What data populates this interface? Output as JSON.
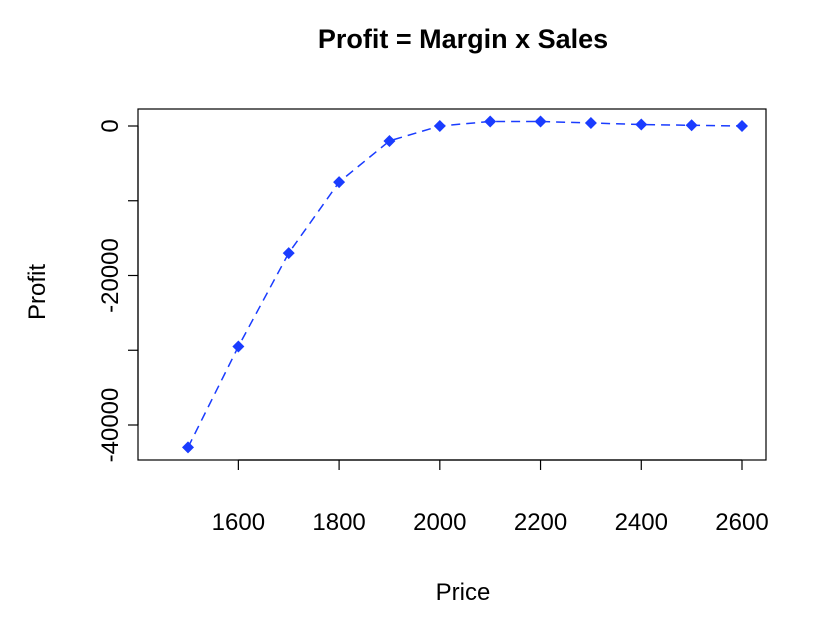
{
  "chart_data": {
    "type": "line",
    "title": "Profit = Margin x Sales",
    "xlabel": "Price",
    "ylabel": "Profit",
    "xlim": [
      1500,
      2600
    ],
    "ylim": [
      -44000,
      1000
    ],
    "x_ticks": [
      1600,
      1800,
      2000,
      2200,
      2400,
      2600
    ],
    "y_ticks": [
      -40000,
      -20000,
      0
    ],
    "x_tick_labels": [
      "1600",
      "1800",
      "2000",
      "2200",
      "2400",
      "2600"
    ],
    "y_tick_labels": [
      "-40000",
      "-20000",
      "0"
    ],
    "grid": false,
    "legend": "none",
    "series": [
      {
        "color": "#1a3cff",
        "marker": "diamond",
        "line_style": "dashed",
        "x": [
          1500,
          1600,
          1700,
          1800,
          1900,
          2000,
          2100,
          2200,
          2300,
          2400,
          2500,
          2600
        ],
        "y": [
          -43000,
          -29500,
          -17000,
          -7500,
          -2000,
          0,
          600,
          600,
          400,
          200,
          100,
          0
        ]
      }
    ]
  }
}
